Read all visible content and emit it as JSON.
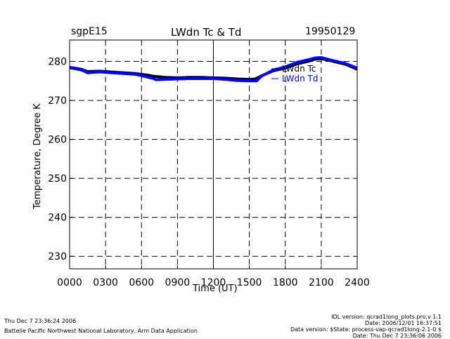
{
  "header": {
    "site": "sgpE15",
    "title": "LWdn Tc & Td",
    "date": "19950129"
  },
  "chart_data": {
    "type": "line",
    "xlabel": "Time (UT)",
    "ylabel": "Temperature, Degree K",
    "xlim": [
      0,
      2400
    ],
    "ylim": [
      226.8,
      285.5
    ],
    "x_ticks": [
      0,
      300,
      600,
      900,
      1200,
      1500,
      1800,
      2100,
      2400
    ],
    "x_tick_labels": [
      "0000",
      "0300",
      "0600",
      "0900",
      "1200",
      "1500",
      "1800",
      "2100",
      "2400"
    ],
    "y_ticks": [
      230,
      240,
      250,
      260,
      270,
      280
    ],
    "y_tick_labels": [
      "230",
      "240",
      "250",
      "260",
      "270",
      "280"
    ],
    "grid": true,
    "legend_position": "top-right",
    "series": [
      {
        "name": "LWdn Tc",
        "color": "#000000",
        "x": [
          0,
          100,
          150,
          250,
          400,
          550,
          650,
          700,
          800,
          900,
          1000,
          1100,
          1200,
          1300,
          1400,
          1500,
          1550,
          1600,
          1700,
          1800,
          1900,
          2000,
          2050,
          2100,
          2150,
          2200,
          2300,
          2400
        ],
        "y": [
          278.5,
          278.0,
          277.4,
          277.5,
          277.2,
          276.9,
          276.5,
          276.2,
          275.9,
          275.8,
          275.9,
          275.9,
          275.8,
          275.7,
          275.5,
          275.4,
          275.5,
          276.3,
          277.6,
          278.3,
          279.4,
          280.1,
          280.6,
          280.7,
          280.4,
          280.0,
          279.3,
          278.0
        ]
      },
      {
        "name": "LWdn Td",
        "color": "#0000ff",
        "x": [
          0,
          100,
          150,
          250,
          400,
          550,
          650,
          700,
          720,
          800,
          900,
          1000,
          1100,
          1200,
          1300,
          1400,
          1500,
          1560,
          1600,
          1700,
          1800,
          1900,
          2000,
          2050,
          2100,
          2150,
          2200,
          2300,
          2400
        ],
        "y": [
          278.4,
          277.8,
          277.1,
          277.3,
          277.0,
          276.7,
          276.0,
          275.6,
          275.3,
          275.4,
          275.5,
          275.6,
          275.6,
          275.6,
          275.4,
          275.1,
          275.0,
          275.0,
          276.2,
          277.8,
          278.6,
          279.8,
          280.5,
          280.9,
          281.0,
          280.6,
          280.2,
          279.5,
          278.3
        ]
      }
    ]
  },
  "footer": {
    "left_line1": "Thu Dec  7 23:36:24 2006",
    "left_line2": "Battelle Pacific Northwest National Laboratory, Arm Data Application",
    "right_line1": "IDL version: qcrad1long_plots.pro,v 1.1",
    "right_line2": "Date: 2006/12/01 16:37:51",
    "right_line3": "Data version: $State: process-vap-qcrad1long-2.1-0 $",
    "right_line4": "Date: Thu Dec  7 23:36:06 2006"
  }
}
